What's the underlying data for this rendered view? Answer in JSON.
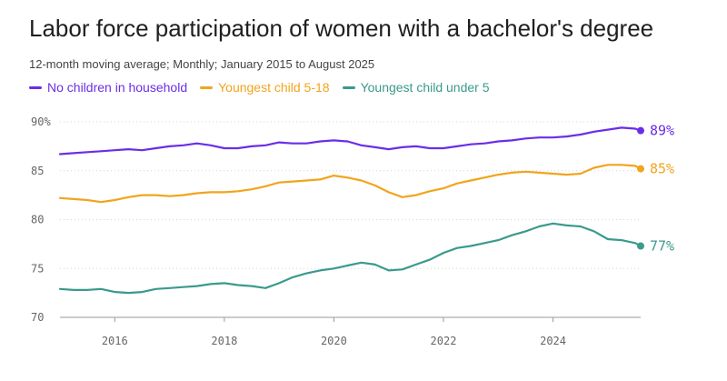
{
  "title": "Labor force participation of women with a bachelor's degree",
  "subtitle": "12-month moving average; Monthly; January 2015 to August 2025",
  "colors": {
    "no_children": "#6a2ee8",
    "child_5_18": "#f2a41c",
    "child_under_5": "#3a9a8c",
    "grid": "#d6d6d6",
    "axis_text": "#666666"
  },
  "chart_data": {
    "type": "line",
    "title": "Labor force participation of women with a bachelor's degree",
    "xlabel": "",
    "ylabel": "",
    "xlim": [
      2015.0,
      2025.6
    ],
    "ylim": [
      70,
      90
    ],
    "grid": true,
    "legend_position": "top-left",
    "y_ticks": [
      70,
      75,
      80,
      85,
      90
    ],
    "y_tick_labels": [
      "70",
      "75",
      "80",
      "85",
      "90%"
    ],
    "x_ticks": [
      2016,
      2018,
      2020,
      2022,
      2024
    ],
    "x_tick_labels": [
      "2016",
      "2018",
      "2020",
      "2022",
      "2024"
    ],
    "series": [
      {
        "name": "No children in household",
        "color_key": "no_children",
        "end_label": "89%",
        "points": [
          [
            2015.0,
            86.7
          ],
          [
            2015.25,
            86.8
          ],
          [
            2015.5,
            86.9
          ],
          [
            2015.75,
            87.0
          ],
          [
            2016.0,
            87.1
          ],
          [
            2016.25,
            87.2
          ],
          [
            2016.5,
            87.1
          ],
          [
            2016.75,
            87.3
          ],
          [
            2017.0,
            87.5
          ],
          [
            2017.25,
            87.6
          ],
          [
            2017.5,
            87.8
          ],
          [
            2017.75,
            87.6
          ],
          [
            2018.0,
            87.3
          ],
          [
            2018.25,
            87.3
          ],
          [
            2018.5,
            87.5
          ],
          [
            2018.75,
            87.6
          ],
          [
            2019.0,
            87.9
          ],
          [
            2019.25,
            87.8
          ],
          [
            2019.5,
            87.8
          ],
          [
            2019.75,
            88.0
          ],
          [
            2020.0,
            88.1
          ],
          [
            2020.25,
            88.0
          ],
          [
            2020.5,
            87.6
          ],
          [
            2020.75,
            87.4
          ],
          [
            2021.0,
            87.2
          ],
          [
            2021.25,
            87.4
          ],
          [
            2021.5,
            87.5
          ],
          [
            2021.75,
            87.3
          ],
          [
            2022.0,
            87.3
          ],
          [
            2022.25,
            87.5
          ],
          [
            2022.5,
            87.7
          ],
          [
            2022.75,
            87.8
          ],
          [
            2023.0,
            88.0
          ],
          [
            2023.25,
            88.1
          ],
          [
            2023.5,
            88.3
          ],
          [
            2023.75,
            88.4
          ],
          [
            2024.0,
            88.4
          ],
          [
            2024.25,
            88.5
          ],
          [
            2024.5,
            88.7
          ],
          [
            2024.75,
            89.0
          ],
          [
            2025.0,
            89.2
          ],
          [
            2025.25,
            89.4
          ],
          [
            2025.5,
            89.3
          ],
          [
            2025.6,
            89.1
          ]
        ]
      },
      {
        "name": "Youngest child 5-18",
        "color_key": "child_5_18",
        "end_label": "85%",
        "points": [
          [
            2015.0,
            82.2
          ],
          [
            2015.25,
            82.1
          ],
          [
            2015.5,
            82.0
          ],
          [
            2015.75,
            81.8
          ],
          [
            2016.0,
            82.0
          ],
          [
            2016.25,
            82.3
          ],
          [
            2016.5,
            82.5
          ],
          [
            2016.75,
            82.5
          ],
          [
            2017.0,
            82.4
          ],
          [
            2017.25,
            82.5
          ],
          [
            2017.5,
            82.7
          ],
          [
            2017.75,
            82.8
          ],
          [
            2018.0,
            82.8
          ],
          [
            2018.25,
            82.9
          ],
          [
            2018.5,
            83.1
          ],
          [
            2018.75,
            83.4
          ],
          [
            2019.0,
            83.8
          ],
          [
            2019.25,
            83.9
          ],
          [
            2019.5,
            84.0
          ],
          [
            2019.75,
            84.1
          ],
          [
            2020.0,
            84.5
          ],
          [
            2020.25,
            84.3
          ],
          [
            2020.5,
            84.0
          ],
          [
            2020.75,
            83.5
          ],
          [
            2021.0,
            82.8
          ],
          [
            2021.25,
            82.3
          ],
          [
            2021.5,
            82.5
          ],
          [
            2021.75,
            82.9
          ],
          [
            2022.0,
            83.2
          ],
          [
            2022.25,
            83.7
          ],
          [
            2022.5,
            84.0
          ],
          [
            2022.75,
            84.3
          ],
          [
            2023.0,
            84.6
          ],
          [
            2023.25,
            84.8
          ],
          [
            2023.5,
            84.9
          ],
          [
            2023.75,
            84.8
          ],
          [
            2024.0,
            84.7
          ],
          [
            2024.25,
            84.6
          ],
          [
            2024.5,
            84.7
          ],
          [
            2024.75,
            85.3
          ],
          [
            2025.0,
            85.6
          ],
          [
            2025.25,
            85.6
          ],
          [
            2025.5,
            85.5
          ],
          [
            2025.6,
            85.2
          ]
        ]
      },
      {
        "name": "Youngest child under 5",
        "color_key": "child_under_5",
        "end_label": "77%",
        "points": [
          [
            2015.0,
            72.9
          ],
          [
            2015.25,
            72.8
          ],
          [
            2015.5,
            72.8
          ],
          [
            2015.75,
            72.9
          ],
          [
            2016.0,
            72.6
          ],
          [
            2016.25,
            72.5
          ],
          [
            2016.5,
            72.6
          ],
          [
            2016.75,
            72.9
          ],
          [
            2017.0,
            73.0
          ],
          [
            2017.25,
            73.1
          ],
          [
            2017.5,
            73.2
          ],
          [
            2017.75,
            73.4
          ],
          [
            2018.0,
            73.5
          ],
          [
            2018.25,
            73.3
          ],
          [
            2018.5,
            73.2
          ],
          [
            2018.75,
            73.0
          ],
          [
            2019.0,
            73.5
          ],
          [
            2019.25,
            74.1
          ],
          [
            2019.5,
            74.5
          ],
          [
            2019.75,
            74.8
          ],
          [
            2020.0,
            75.0
          ],
          [
            2020.25,
            75.3
          ],
          [
            2020.5,
            75.6
          ],
          [
            2020.75,
            75.4
          ],
          [
            2021.0,
            74.8
          ],
          [
            2021.25,
            74.9
          ],
          [
            2021.5,
            75.4
          ],
          [
            2021.75,
            75.9
          ],
          [
            2022.0,
            76.6
          ],
          [
            2022.25,
            77.1
          ],
          [
            2022.5,
            77.3
          ],
          [
            2022.75,
            77.6
          ],
          [
            2023.0,
            77.9
          ],
          [
            2023.25,
            78.4
          ],
          [
            2023.5,
            78.8
          ],
          [
            2023.75,
            79.3
          ],
          [
            2024.0,
            79.6
          ],
          [
            2024.25,
            79.4
          ],
          [
            2024.5,
            79.3
          ],
          [
            2024.75,
            78.8
          ],
          [
            2025.0,
            78.0
          ],
          [
            2025.25,
            77.9
          ],
          [
            2025.5,
            77.6
          ],
          [
            2025.6,
            77.3
          ]
        ]
      }
    ]
  }
}
